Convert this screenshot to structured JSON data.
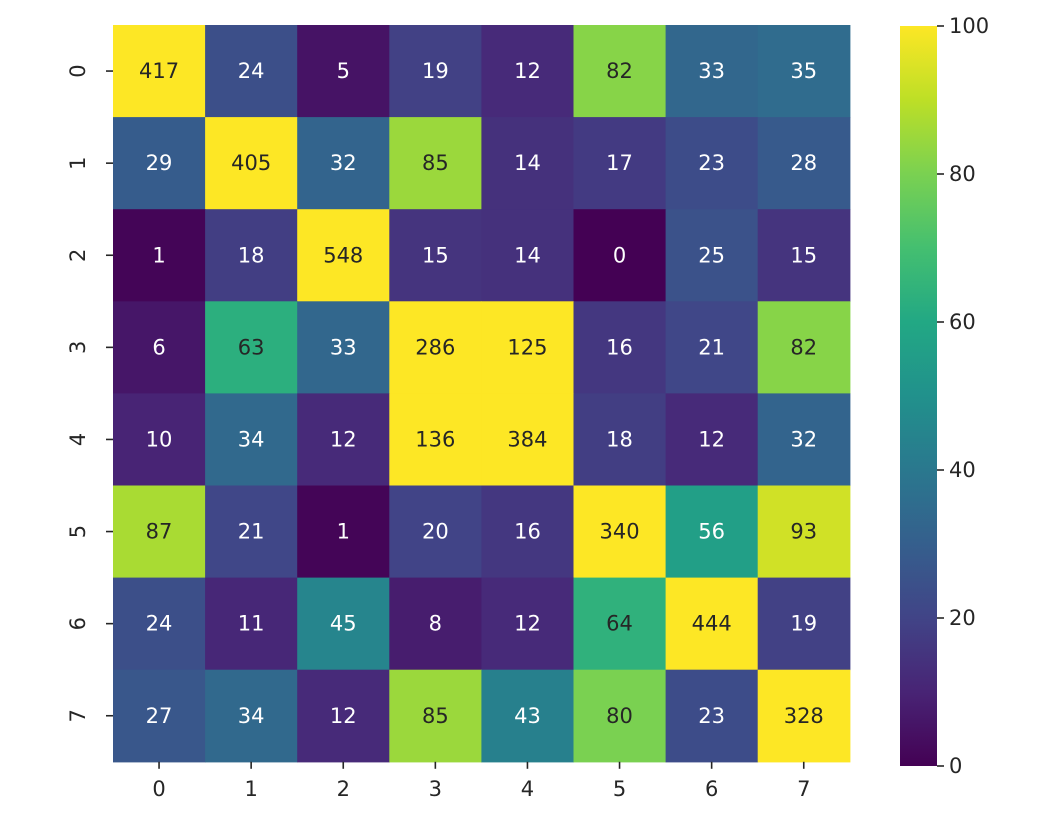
{
  "chart_data": {
    "type": "heatmap",
    "title": "",
    "xlabel": "",
    "ylabel": "",
    "x_categories": [
      "0",
      "1",
      "2",
      "3",
      "4",
      "5",
      "6",
      "7"
    ],
    "y_categories": [
      "0",
      "1",
      "2",
      "3",
      "4",
      "5",
      "6",
      "7"
    ],
    "values": [
      [
        417,
        24,
        5,
        19,
        12,
        82,
        33,
        35
      ],
      [
        29,
        405,
        32,
        85,
        14,
        17,
        23,
        28
      ],
      [
        1,
        18,
        548,
        15,
        14,
        0,
        25,
        15
      ],
      [
        6,
        63,
        33,
        286,
        125,
        16,
        21,
        82
      ],
      [
        10,
        34,
        12,
        136,
        384,
        18,
        12,
        32
      ],
      [
        87,
        21,
        1,
        20,
        16,
        340,
        56,
        93
      ],
      [
        24,
        11,
        45,
        8,
        12,
        64,
        444,
        19
      ],
      [
        27,
        34,
        12,
        85,
        43,
        80,
        23,
        328
      ]
    ],
    "annotated": true,
    "colormap": "viridis",
    "color_range": [
      0,
      100
    ],
    "colorbar": {
      "ticks": [
        "0",
        "20",
        "40",
        "60",
        "80",
        "100"
      ],
      "tick_values": [
        0,
        20,
        40,
        60,
        80,
        100
      ],
      "placement": "right"
    },
    "grid": false
  }
}
